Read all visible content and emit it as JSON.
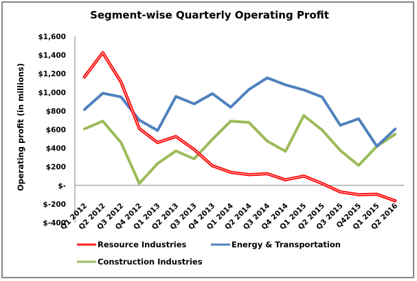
{
  "chart_data": {
    "type": "line",
    "title": "Segment-wise Quarterly Operating Profit",
    "xlabel": "",
    "ylabel": "Operating profit (in millions)",
    "ylim": [
      -400,
      1600
    ],
    "yticks": [
      1600,
      1400,
      1200,
      1000,
      800,
      600,
      400,
      200,
      0,
      -200,
      -400
    ],
    "ytick_labels": [
      "$1,600",
      "$1,400",
      "$1,200",
      "$1,000",
      "$800",
      "$600",
      "$400",
      "$200",
      "$-",
      "$-200",
      "$-400"
    ],
    "grid": false,
    "legend_position": "bottom",
    "categories": [
      "Q1 2012",
      "Q2 2012",
      "Q3 2012",
      "Q4 2012",
      "Q1 2013",
      "Q2 2013",
      "Q3 2013",
      "Q4 2013",
      "Q1 2014",
      "Q2 2014",
      "Q3 2014",
      "Q4 2014",
      "Q1 2015",
      "Q2 2015",
      "Q3 2015",
      "Q42015",
      "Q1 2015",
      "Q2 2016"
    ],
    "series": [
      {
        "name": "Resource Industries",
        "color": "#FF0000",
        "values": [
          1165,
          1425,
          1110,
          610,
          460,
          525,
          385,
          210,
          140,
          115,
          125,
          60,
          100,
          20,
          -70,
          -100,
          -95,
          -165
        ]
      },
      {
        "name": "Energy & Transportation",
        "color": "#4F81BD",
        "values": [
          815,
          990,
          950,
          700,
          590,
          955,
          875,
          985,
          840,
          1030,
          1155,
          1080,
          1025,
          950,
          645,
          715,
          420,
          605
        ]
      },
      {
        "name": "Construction Industries",
        "color": "#9BBB59",
        "values": [
          607,
          690,
          460,
          20,
          235,
          370,
          285,
          495,
          690,
          675,
          475,
          365,
          750,
          595,
          375,
          215,
          420,
          550
        ]
      }
    ]
  }
}
